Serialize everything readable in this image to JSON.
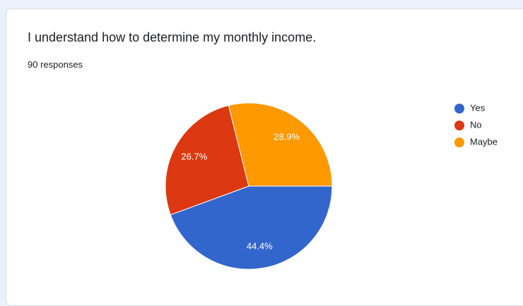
{
  "chart_data": {
    "type": "pie",
    "title": "I understand how to determine my monthly income.",
    "subtitle": "90 responses",
    "categories": [
      "Yes",
      "No",
      "Maybe"
    ],
    "values": [
      44.4,
      26.7,
      28.9
    ],
    "value_labels": [
      "44.4%",
      "26.7%",
      "28.9%"
    ],
    "colors": [
      "#3366cc",
      "#dc3912",
      "#ff9900"
    ],
    "legend": "right"
  }
}
